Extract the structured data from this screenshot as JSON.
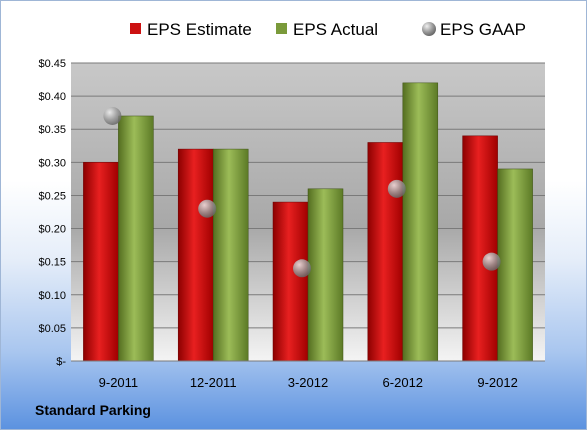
{
  "chart_data": {
    "type": "bar",
    "categories": [
      "9-2011",
      "12-2011",
      "3-2012",
      "6-2012",
      "9-2012"
    ],
    "series": [
      {
        "name": "EPS Estimate",
        "values": [
          0.3,
          0.32,
          0.24,
          0.33,
          0.34
        ],
        "color": "#cc1111"
      },
      {
        "name": "EPS Actual",
        "values": [
          0.37,
          0.32,
          0.26,
          0.42,
          0.29
        ],
        "color": "#7a9a3a"
      },
      {
        "name": "EPS GAAP",
        "values": [
          0.37,
          0.23,
          0.14,
          0.26,
          0.15
        ],
        "color": "#9a9a9a",
        "marker": "sphere"
      }
    ],
    "yticks": [
      {
        "value": 0,
        "label": "$-"
      },
      {
        "value": 0.05,
        "label": "$0.05"
      },
      {
        "value": 0.1,
        "label": "$0.10"
      },
      {
        "value": 0.15,
        "label": "$0.15"
      },
      {
        "value": 0.2,
        "label": "$0.20"
      },
      {
        "value": 0.25,
        "label": "$0.25"
      },
      {
        "value": 0.3,
        "label": "$0.30"
      },
      {
        "value": 0.35,
        "label": "$0.35"
      },
      {
        "value": 0.4,
        "label": "$0.40"
      },
      {
        "value": 0.45,
        "label": "$0.45"
      }
    ],
    "ylim": [
      0,
      0.45
    ],
    "grid": true,
    "legend": "top"
  },
  "caption": "Standard Parking"
}
